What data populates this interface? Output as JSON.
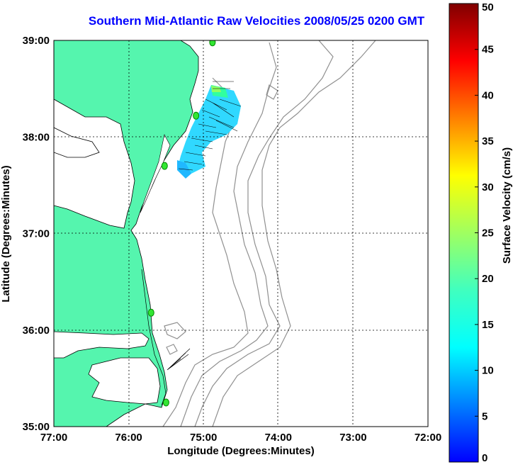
{
  "title": "Southern Mid-Atlantic Raw Velocities 2008/05/25 0200 GMT",
  "map": {
    "xlabel": "Longitude (Degrees:Minutes)",
    "ylabel": "Latitude (Degrees:Minutes)",
    "x_ticks": [
      "77:00",
      "76:00",
      "75:00",
      "74:00",
      "73:00",
      "72:00"
    ],
    "y_ticks": [
      "39:00",
      "38:00",
      "37:00",
      "36:00",
      "35:00"
    ],
    "lon_range": [
      -77,
      -72
    ],
    "lat_range": [
      35,
      39
    ],
    "grid": "dotted",
    "land_color": "#55f5ae",
    "bathymetry_color": "#909090",
    "station_color": "#33e633"
  },
  "colorbar": {
    "label": "Surface Velocity (cm/s)",
    "ticks": [
      "0",
      "5",
      "10",
      "15",
      "20",
      "25",
      "30",
      "35",
      "40",
      "45",
      "50"
    ],
    "range": [
      0,
      50
    ],
    "colormap": "jet"
  },
  "stations": [
    {
      "lon": -74.88,
      "lat": 38.98
    },
    {
      "lon": -75.1,
      "lat": 38.22
    },
    {
      "lon": -75.52,
      "lat": 37.7
    },
    {
      "lon": -75.7,
      "lat": 36.18
    },
    {
      "lon": -75.5,
      "lat": 35.25
    }
  ]
}
